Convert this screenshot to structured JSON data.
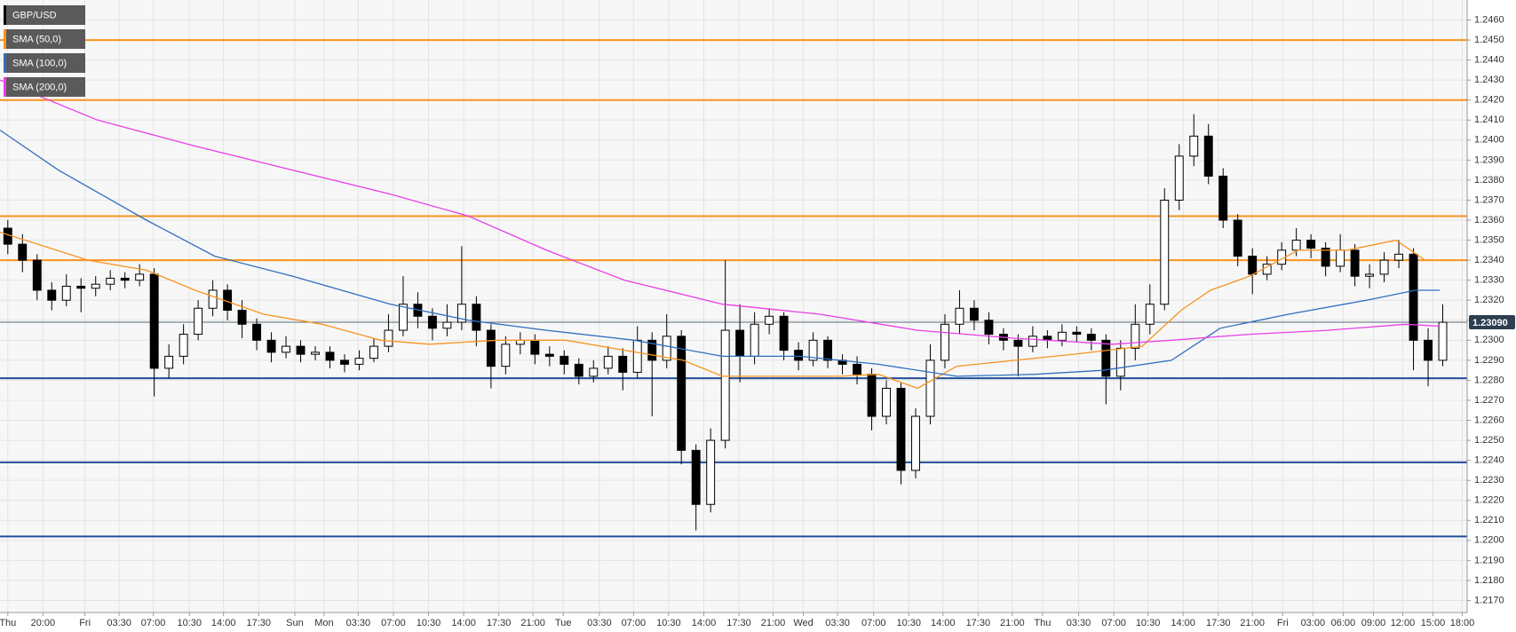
{
  "chart_data": {
    "type": "candlestick",
    "name": "GBP/USD",
    "color": "#000000",
    "x": [
      0,
      1.5,
      3,
      4.5,
      6,
      7.5,
      9,
      10.5,
      12,
      13.5,
      15,
      16.5,
      18,
      19.5,
      21,
      22.5,
      24,
      25.5,
      27,
      28.5,
      30,
      31.5,
      33,
      34.5,
      36,
      37.5,
      39,
      40.5,
      42,
      43.5,
      45,
      46.5,
      48,
      49.5,
      51,
      52.5,
      54,
      55.5,
      57,
      58.5,
      60,
      61.5,
      63,
      64.5,
      66,
      67.5,
      69,
      70.5,
      72,
      73.5,
      75,
      76.5,
      78,
      79.5,
      81,
      82.5,
      84,
      85.5,
      87,
      88.5,
      90,
      91.5,
      93,
      94.5,
      96,
      97.5,
      99,
      100.5,
      102,
      103.5,
      105,
      106.5,
      108,
      109.5,
      111,
      112.5,
      114,
      115.5,
      117,
      118.5,
      120,
      121.5,
      123,
      124.5,
      126,
      127.5,
      129,
      130.5,
      132,
      133.5,
      135,
      136.5,
      138,
      139.5,
      141,
      142.5,
      144,
      145.5,
      147
    ],
    "open": [
      1.2356,
      1.2348,
      1.234,
      1.2325,
      1.232,
      1.2327,
      1.2326,
      1.2328,
      1.2331,
      1.233,
      1.2333,
      1.2286,
      1.2292,
      1.2303,
      1.2316,
      1.2325,
      1.2315,
      1.2308,
      1.23,
      1.2294,
      1.2297,
      1.2293,
      1.2294,
      1.229,
      1.2288,
      1.2291,
      1.2297,
      1.2305,
      1.2318,
      1.2312,
      1.2306,
      1.2309,
      1.2318,
      1.2305,
      1.2287,
      1.2298,
      1.23,
      1.2293,
      1.2292,
      1.2288,
      1.2282,
      1.2286,
      1.2292,
      1.2284,
      1.23,
      1.229,
      1.2302,
      1.2245,
      1.2218,
      1.225,
      1.2305,
      1.2292,
      1.2308,
      1.2312,
      1.2295,
      1.229,
      1.23,
      1.229,
      1.2288,
      1.2283,
      1.2262,
      1.2276,
      1.2235,
      1.2262,
      1.229,
      1.2308,
      1.2316,
      1.231,
      1.2303,
      1.23,
      1.2297,
      1.2302,
      1.23,
      1.2304,
      1.2303,
      1.23,
      1.2282,
      1.2296,
      1.2308,
      1.2318,
      1.237,
      1.2392,
      1.2402,
      1.2382,
      1.236,
      1.2342,
      1.2333,
      1.2338,
      1.2345,
      1.235,
      1.2346,
      1.2337,
      1.2345,
      1.2332,
      1.2333,
      1.234,
      1.2343,
      1.23,
      1.229
    ],
    "high": [
      1.236,
      1.2353,
      1.2343,
      1.2329,
      1.2333,
      1.2331,
      1.2332,
      1.2335,
      1.2334,
      1.2338,
      1.2336,
      1.2298,
      1.2308,
      1.232,
      1.233,
      1.2328,
      1.232,
      1.2311,
      1.2304,
      1.2302,
      1.23,
      1.2297,
      1.2297,
      1.2293,
      1.2295,
      1.2301,
      1.2313,
      1.2332,
      1.2324,
      1.2316,
      1.2318,
      1.2347,
      1.2322,
      1.2308,
      1.2302,
      1.2304,
      1.2303,
      1.2297,
      1.2295,
      1.2291,
      1.229,
      1.2297,
      1.2296,
      1.2307,
      1.2304,
      1.2313,
      1.2305,
      1.2248,
      1.2256,
      1.234,
      1.2318,
      1.2314,
      1.2316,
      1.2314,
      1.2299,
      1.2304,
      1.2302,
      1.2293,
      1.2292,
      1.2286,
      1.228,
      1.2279,
      1.2266,
      1.2298,
      1.2313,
      1.2325,
      1.232,
      1.2314,
      1.2306,
      1.2303,
      1.2307,
      1.2305,
      1.2308,
      1.2307,
      1.2306,
      1.2303,
      1.23,
      1.2318,
      1.2328,
      1.2376,
      1.2398,
      1.2413,
      1.2408,
      1.2386,
      1.2363,
      1.2346,
      1.2342,
      1.2349,
      1.2356,
      1.2353,
      1.2349,
      1.2353,
      1.2348,
      1.2338,
      1.2344,
      1.235,
      1.2346,
      1.2306,
      1.2318
    ],
    "low": [
      1.2343,
      1.2334,
      1.232,
      1.2315,
      1.2317,
      1.2314,
      1.2322,
      1.2325,
      1.2326,
      1.2327,
      1.2272,
      1.2281,
      1.2288,
      1.23,
      1.2312,
      1.231,
      1.2301,
      1.2295,
      1.2289,
      1.2291,
      1.2289,
      1.229,
      1.2286,
      1.2284,
      1.2285,
      1.2289,
      1.2294,
      1.2302,
      1.2306,
      1.23,
      1.2302,
      1.2305,
      1.2297,
      1.2276,
      1.2283,
      1.2293,
      1.2288,
      1.2287,
      1.2283,
      1.2278,
      1.2279,
      1.2283,
      1.2275,
      1.2281,
      1.2262,
      1.2286,
      1.2238,
      1.2205,
      1.2214,
      1.2246,
      1.2279,
      1.2288,
      1.2303,
      1.229,
      1.2285,
      1.2287,
      1.2286,
      1.2283,
      1.2278,
      1.2255,
      1.2258,
      1.2228,
      1.2231,
      1.2258,
      1.2286,
      1.2303,
      1.2305,
      1.2298,
      1.2295,
      1.2282,
      1.2294,
      1.2296,
      1.2297,
      1.2299,
      1.2295,
      1.2268,
      1.2275,
      1.229,
      1.2303,
      1.2315,
      1.2365,
      1.2387,
      1.2378,
      1.2356,
      1.2337,
      1.2323,
      1.233,
      1.2335,
      1.2342,
      1.2341,
      1.2332,
      1.2334,
      1.2327,
      1.2326,
      1.2329,
      1.2336,
      1.2285,
      1.2277,
      1.2287
    ],
    "close": [
      1.2348,
      1.234,
      1.2325,
      1.232,
      1.2327,
      1.2326,
      1.2328,
      1.2331,
      1.233,
      1.2333,
      1.2286,
      1.2292,
      1.2303,
      1.2316,
      1.2325,
      1.2315,
      1.2308,
      1.23,
      1.2294,
      1.2297,
      1.2293,
      1.2294,
      1.229,
      1.2288,
      1.2291,
      1.2297,
      1.2305,
      1.2318,
      1.2312,
      1.2306,
      1.2309,
      1.2318,
      1.2305,
      1.2287,
      1.2298,
      1.23,
      1.2293,
      1.2292,
      1.2288,
      1.2282,
      1.2286,
      1.2292,
      1.2284,
      1.23,
      1.229,
      1.2302,
      1.2245,
      1.2218,
      1.225,
      1.2305,
      1.2292,
      1.2308,
      1.2312,
      1.2295,
      1.229,
      1.23,
      1.229,
      1.2288,
      1.2283,
      1.2262,
      1.2276,
      1.2235,
      1.2262,
      1.229,
      1.2308,
      1.2316,
      1.231,
      1.2303,
      1.23,
      1.2297,
      1.2302,
      1.23,
      1.2304,
      1.2303,
      1.23,
      1.2282,
      1.2296,
      1.2308,
      1.2318,
      1.237,
      1.2392,
      1.2402,
      1.2382,
      1.236,
      1.2342,
      1.2333,
      1.2338,
      1.2345,
      1.235,
      1.2346,
      1.2337,
      1.2345,
      1.2332,
      1.2333,
      1.234,
      1.2343,
      1.23,
      1.229,
      1.2309
    ],
    "series": [
      {
        "name": "SMA (50,0)",
        "color": "#f7931e",
        "x": [
          -0.8,
          8.2,
          14.2,
          19.2,
          26.2,
          32.2,
          38.2,
          43.2,
          50.2,
          57.2,
          63.2,
          69.2,
          73.2,
          79.2,
          85.2,
          89.2,
          93.2,
          97.2,
          103.2,
          109.2,
          116.2,
          120.2,
          123.2,
          127.2,
          132.2,
          137.2,
          142.2,
          145.2
        ],
        "values": [
          1.2354,
          1.234,
          1.2335,
          1.2325,
          1.2313,
          1.2308,
          1.23,
          1.2298,
          1.23,
          1.23,
          1.2295,
          1.229,
          1.2282,
          1.2282,
          1.2282,
          1.2283,
          1.2276,
          1.2287,
          1.229,
          1.2293,
          1.2297,
          1.2315,
          1.2325,
          1.2332,
          1.2345,
          1.2345,
          1.235,
          1.234
        ]
      },
      {
        "name": "SMA (100,0)",
        "color": "#2f6fbf",
        "x": [
          -0.8,
          5.2,
          14.2,
          21.2,
          29.2,
          39.2,
          47.2,
          55.2,
          64.2,
          73.2,
          81.2,
          89.2,
          97.2,
          105.2,
          112.2,
          119.2,
          124.2,
          131.2,
          139.2,
          144.2,
          146.7
        ],
        "values": [
          1.2405,
          1.2385,
          1.236,
          1.2342,
          1.2332,
          1.2318,
          1.231,
          1.2305,
          1.23,
          1.2292,
          1.2292,
          1.2288,
          1.2282,
          1.2283,
          1.2285,
          1.229,
          1.2306,
          1.2313,
          1.232,
          1.2325,
          1.2325
        ]
      },
      {
        "name": "SMA (200,0)",
        "color": "#e83ee8",
        "x": [
          -0.8,
          9.2,
          19.2,
          29.2,
          39.2,
          47.2,
          55.2,
          63.2,
          73.2,
          83.2,
          93.2,
          103.2,
          113.2,
          119.2,
          127.2,
          135.2,
          143.2,
          146.7
        ],
        "values": [
          1.243,
          1.241,
          1.2397,
          1.2385,
          1.2373,
          1.2362,
          1.2345,
          1.233,
          1.2318,
          1.2313,
          1.2305,
          1.2301,
          1.2298,
          1.23,
          1.2303,
          1.2305,
          1.2308,
          1.2307
        ]
      }
    ],
    "levels": [
      {
        "value": 1.245,
        "color": "#f7931e"
      },
      {
        "value": 1.242,
        "color": "#f7931e"
      },
      {
        "value": 1.2362,
        "color": "#f7931e"
      },
      {
        "value": 1.234,
        "color": "#f7931e"
      },
      {
        "value": 1.2281,
        "color": "#1f4e99"
      },
      {
        "value": 1.2239,
        "color": "#1f4e99"
      },
      {
        "value": 1.2202,
        "color": "#1f4e99"
      }
    ],
    "last_price": {
      "value": 1.2309,
      "label": "1.23090"
    },
    "xlim": [
      -0.8,
      149.5
    ],
    "ylim": [
      1.2164,
      1.247
    ],
    "grid": true,
    "xticks": [
      {
        "value": 0,
        "label": "Thu"
      },
      {
        "value": 3.6,
        "label": "20:00"
      },
      {
        "value": 7.9,
        "label": "Fri"
      },
      {
        "value": 11.4,
        "label": "03:30"
      },
      {
        "value": 14.9,
        "label": "07:00"
      },
      {
        "value": 18.6,
        "label": "10:30"
      },
      {
        "value": 22.1,
        "label": "14:00"
      },
      {
        "value": 25.7,
        "label": "17:30"
      },
      {
        "value": 29.4,
        "label": "Sun"
      },
      {
        "value": 32.4,
        "label": "Mon"
      },
      {
        "value": 35.9,
        "label": "03:30"
      },
      {
        "value": 39.5,
        "label": "07:00"
      },
      {
        "value": 43.1,
        "label": "10:30"
      },
      {
        "value": 46.7,
        "label": "14:00"
      },
      {
        "value": 50.3,
        "label": "17:30"
      },
      {
        "value": 53.8,
        "label": "21:00"
      },
      {
        "value": 56.9,
        "label": "Tue"
      },
      {
        "value": 60.6,
        "label": "03:30"
      },
      {
        "value": 64.1,
        "label": "07:00"
      },
      {
        "value": 67.7,
        "label": "10:30"
      },
      {
        "value": 71.3,
        "label": "14:00"
      },
      {
        "value": 74.9,
        "label": "17:30"
      },
      {
        "value": 78.4,
        "label": "21:00"
      },
      {
        "value": 81.5,
        "label": "Wed"
      },
      {
        "value": 85.0,
        "label": "03:30"
      },
      {
        "value": 88.7,
        "label": "07:00"
      },
      {
        "value": 92.3,
        "label": "10:30"
      },
      {
        "value": 95.8,
        "label": "14:00"
      },
      {
        "value": 99.4,
        "label": "17:30"
      },
      {
        "value": 102.9,
        "label": "21:00"
      },
      {
        "value": 106.0,
        "label": "Thu"
      },
      {
        "value": 109.7,
        "label": "03:30"
      },
      {
        "value": 113.3,
        "label": "07:00"
      },
      {
        "value": 116.8,
        "label": "10:30"
      },
      {
        "value": 120.4,
        "label": "14:00"
      },
      {
        "value": 124.0,
        "label": "17:30"
      },
      {
        "value": 127.5,
        "label": "21:00"
      },
      {
        "value": 130.6,
        "label": "Fri"
      },
      {
        "value": 133.7,
        "label": "03:00"
      },
      {
        "value": 136.8,
        "label": "06:00"
      },
      {
        "value": 139.9,
        "label": "09:00"
      },
      {
        "value": 142.9,
        "label": "12:00"
      },
      {
        "value": 146.0,
        "label": "15:00"
      },
      {
        "value": 149.0,
        "label": "18:00"
      }
    ],
    "yticks": [
      {
        "value": 1.217,
        "label": "1.2170"
      },
      {
        "value": 1.218,
        "label": "1.2180"
      },
      {
        "value": 1.219,
        "label": "1.2190"
      },
      {
        "value": 1.22,
        "label": "1.2200"
      },
      {
        "value": 1.221,
        "label": "1.2210"
      },
      {
        "value": 1.222,
        "label": "1.2220"
      },
      {
        "value": 1.223,
        "label": "1.2230"
      },
      {
        "value": 1.224,
        "label": "1.2240"
      },
      {
        "value": 1.225,
        "label": "1.2250"
      },
      {
        "value": 1.226,
        "label": "1.2260"
      },
      {
        "value": 1.227,
        "label": "1.2270"
      },
      {
        "value": 1.228,
        "label": "1.2280"
      },
      {
        "value": 1.229,
        "label": "1.2290"
      },
      {
        "value": 1.23,
        "label": "1.2300"
      },
      {
        "value": 1.231,
        "label": "1.2310"
      },
      {
        "value": 1.232,
        "label": "1.2320"
      },
      {
        "value": 1.233,
        "label": "1.2330"
      },
      {
        "value": 1.234,
        "label": "1.2340"
      },
      {
        "value": 1.235,
        "label": "1.2350"
      },
      {
        "value": 1.236,
        "label": "1.2360"
      },
      {
        "value": 1.237,
        "label": "1.2370"
      },
      {
        "value": 1.238,
        "label": "1.2380"
      },
      {
        "value": 1.239,
        "label": "1.2390"
      },
      {
        "value": 1.24,
        "label": "1.2400"
      },
      {
        "value": 1.241,
        "label": "1.2410"
      },
      {
        "value": 1.242,
        "label": "1.2420"
      },
      {
        "value": 1.243,
        "label": "1.2430"
      },
      {
        "value": 1.244,
        "label": "1.2440"
      },
      {
        "value": 1.245,
        "label": "1.2450"
      },
      {
        "value": 1.246,
        "label": "1.2460"
      }
    ]
  }
}
